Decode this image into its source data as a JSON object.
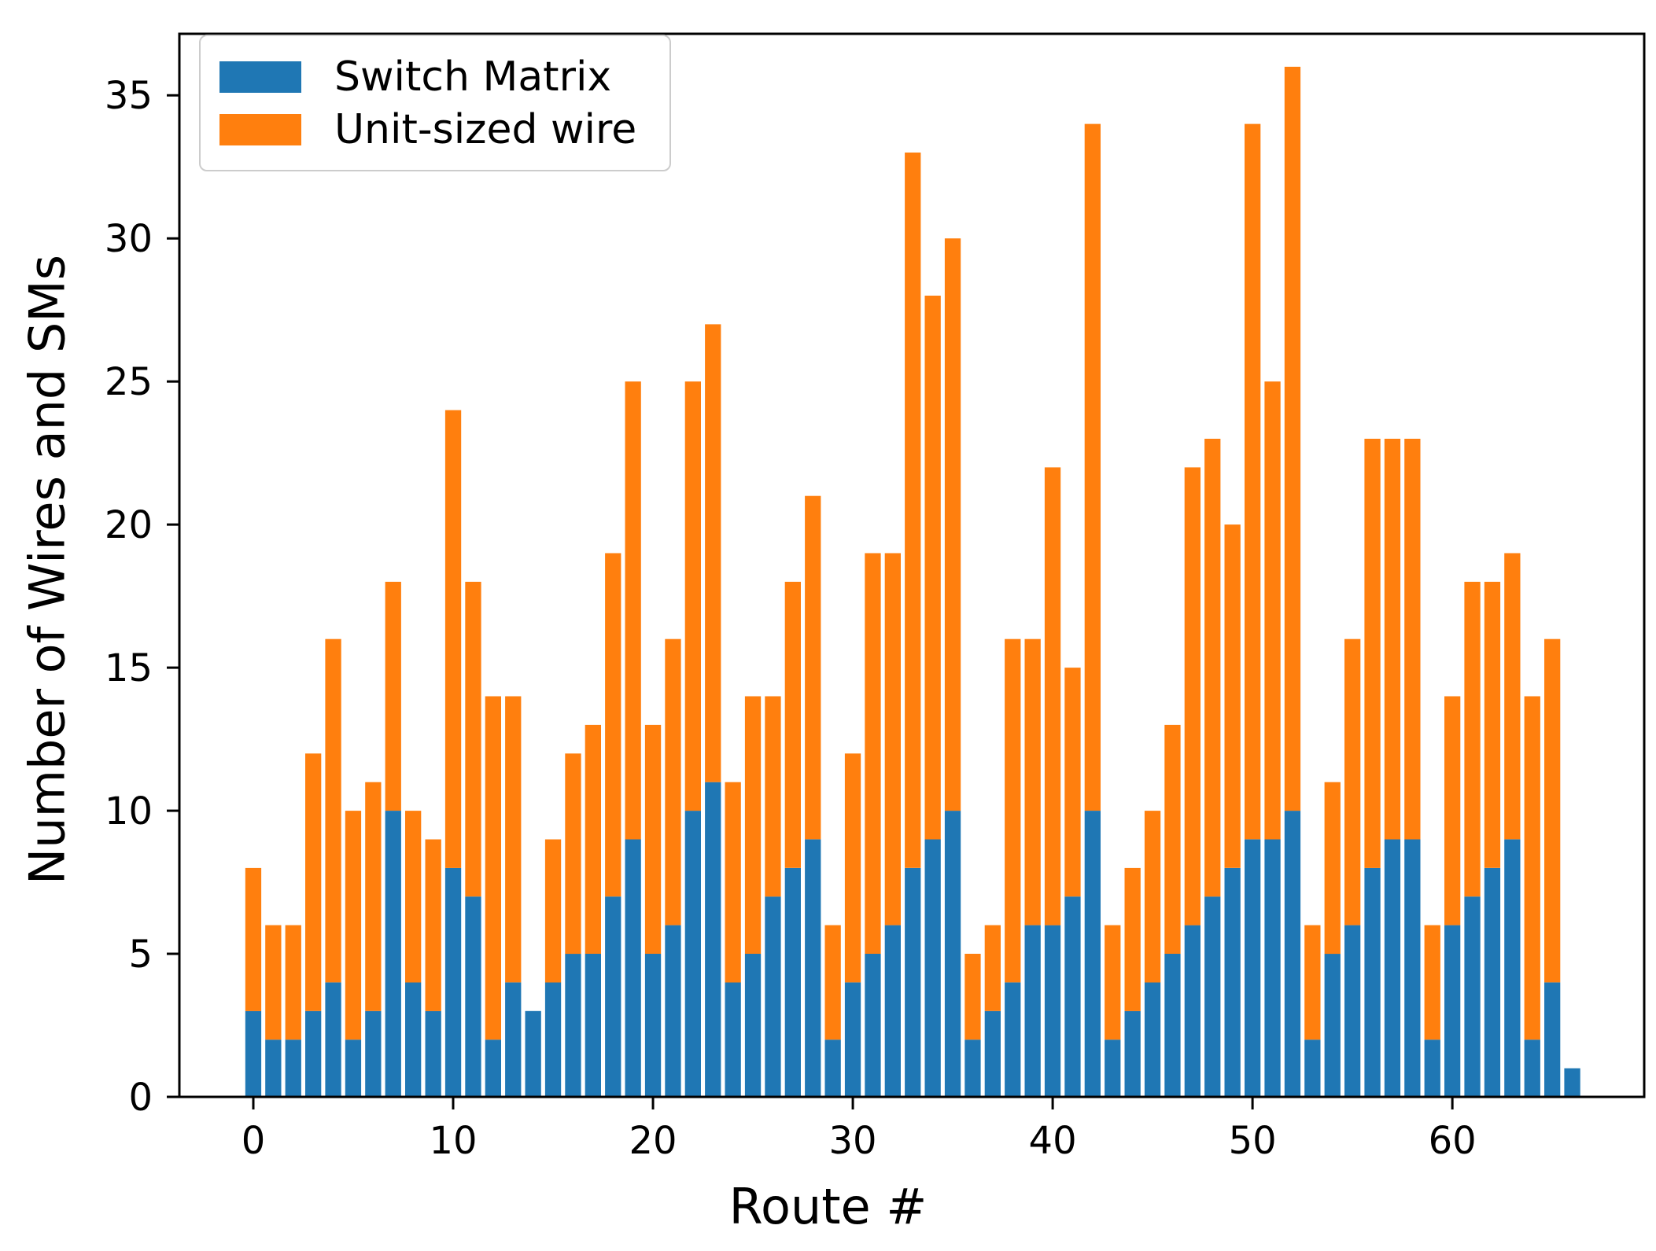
{
  "figure": {
    "background": "#ffffff",
    "spine_color": "#000000"
  },
  "legend": {
    "position": "upper left",
    "items": [
      {
        "label": "Switch Matrix",
        "color": "#1f77b4"
      },
      {
        "label": "Unit-sized wire",
        "color": "#ff7f0e"
      }
    ]
  },
  "chart_data": {
    "type": "bar",
    "stacked": true,
    "title": "",
    "xlabel": "Route #",
    "ylabel": "Number of Wires and SMs",
    "x": [
      0,
      1,
      2,
      3,
      4,
      5,
      6,
      7,
      8,
      9,
      10,
      11,
      12,
      13,
      14,
      15,
      16,
      17,
      18,
      19,
      20,
      21,
      22,
      23,
      24,
      25,
      26,
      27,
      28,
      29,
      30,
      31,
      32,
      33,
      34,
      35,
      36,
      37,
      38,
      39,
      40,
      41,
      42,
      43,
      44,
      45,
      46,
      47,
      48,
      49,
      50,
      51,
      52,
      53,
      54,
      55,
      56,
      57,
      58,
      59,
      60,
      61,
      62,
      63,
      64,
      65,
      66
    ],
    "series": [
      {
        "name": "Switch Matrix",
        "color": "#1f77b4",
        "values": [
          3,
          2,
          2,
          3,
          4,
          2,
          3,
          10,
          4,
          3,
          8,
          7,
          2,
          4,
          3,
          4,
          5,
          5,
          7,
          9,
          5,
          6,
          10,
          11,
          4,
          5,
          7,
          8,
          9,
          2,
          4,
          5,
          6,
          8,
          9,
          10,
          2,
          3,
          4,
          6,
          6,
          7,
          10,
          2,
          3,
          4,
          5,
          6,
          7,
          8,
          9,
          9,
          10,
          2,
          5,
          6,
          8,
          9,
          9,
          2,
          6,
          7,
          8,
          9,
          2,
          4,
          1
        ]
      },
      {
        "name": "Unit-sized wire",
        "color": "#ff7f0e",
        "values": [
          5,
          4,
          4,
          9,
          12,
          8,
          8,
          8,
          6,
          6,
          16,
          11,
          12,
          10,
          0,
          5,
          7,
          8,
          12,
          16,
          8,
          10,
          15,
          16,
          7,
          9,
          7,
          10,
          12,
          4,
          8,
          14,
          13,
          25,
          19,
          20,
          3,
          3,
          12,
          10,
          16,
          8,
          24,
          4,
          5,
          6,
          8,
          16,
          16,
          12,
          25,
          16,
          26,
          4,
          6,
          10,
          15,
          14,
          14,
          4,
          8,
          11,
          10,
          10,
          12,
          12,
          0
        ]
      }
    ],
    "stack_totals": [
      8,
      6,
      6,
      12,
      16,
      10,
      11,
      18,
      10,
      9,
      24,
      18,
      14,
      14,
      3,
      9,
      12,
      13,
      19,
      25,
      13,
      16,
      25,
      27,
      11,
      14,
      14,
      18,
      21,
      6,
      12,
      19,
      19,
      33,
      28,
      30,
      5,
      6,
      16,
      16,
      22,
      15,
      34,
      6,
      8,
      10,
      13,
      22,
      23,
      20,
      34,
      25,
      36,
      6,
      11,
      16,
      23,
      23,
      23,
      6,
      14,
      18,
      18,
      19,
      14,
      16,
      1
    ],
    "xticks": [
      0,
      10,
      20,
      30,
      40,
      50,
      60
    ],
    "yticks": [
      0,
      5,
      10,
      15,
      20,
      25,
      30,
      35
    ],
    "xlim": [
      -3.7,
      69.6
    ],
    "ylim": [
      0,
      37.15
    ],
    "bar_width": 0.8,
    "grid": false,
    "legend_position": "upper left"
  }
}
